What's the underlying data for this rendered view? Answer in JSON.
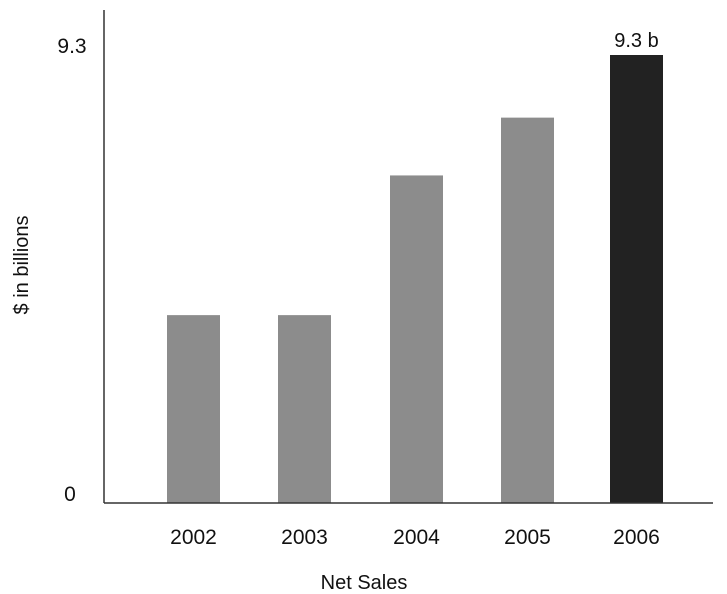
{
  "chart_data": {
    "type": "bar",
    "title": "",
    "xlabel": "Net Sales",
    "ylabel": "$ in billions",
    "categories": [
      "2002",
      "2003",
      "2004",
      "2005",
      "2006"
    ],
    "values": [
      3.9,
      3.9,
      6.8,
      8.0,
      9.3
    ],
    "ylim": [
      0,
      9.3
    ],
    "y_ticks": [
      "0",
      "9.3"
    ],
    "data_labels": [
      {
        "category": "2006",
        "text": "9.3 b"
      }
    ],
    "colors": {
      "bar": "#8c8c8c",
      "highlight_bar": "#222222",
      "axis": "#333333"
    },
    "highlight_category": "2006",
    "grid": false,
    "legend": "none"
  }
}
